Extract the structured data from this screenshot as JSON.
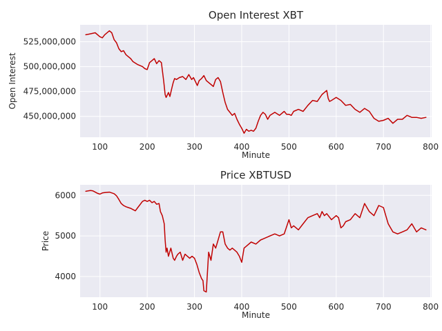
{
  "chart_data": [
    {
      "type": "line",
      "title": "Open Interest XBT",
      "xlabel": "Minute",
      "ylabel": "Open Interest",
      "xlim": [
        58,
        802
      ],
      "ylim": [
        429000000,
        542000000
      ],
      "xticks": [
        100,
        200,
        300,
        400,
        500,
        600,
        700,
        800
      ],
      "yticks": [
        450000000,
        475000000,
        500000000,
        525000000
      ],
      "ytick_labels": [
        "450,000,000",
        "475,000,000",
        "500,000,000",
        "525,000,000"
      ],
      "grid": true,
      "color": "#c00000",
      "series": [
        {
          "x": [
            70,
            80,
            90,
            100,
            105,
            110,
            120,
            125,
            130,
            135,
            140,
            145,
            150,
            155,
            160,
            165,
            170,
            180,
            190,
            195,
            200,
            205,
            210,
            215,
            220,
            225,
            230,
            235,
            238,
            240,
            243,
            245,
            248,
            252,
            255,
            258,
            262,
            268,
            275,
            282,
            288,
            294,
            298,
            302,
            306,
            310,
            315,
            320,
            325,
            330,
            335,
            340,
            345,
            350,
            355,
            360,
            365,
            370,
            375,
            380,
            385,
            390,
            395,
            400,
            405,
            410,
            415,
            420,
            425,
            430,
            435,
            440,
            445,
            450,
            455,
            460,
            470,
            480,
            490,
            495,
            500,
            505,
            510,
            520,
            530,
            540,
            550,
            560,
            570,
            575,
            580,
            583,
            586,
            590,
            600,
            610,
            620,
            630,
            640,
            650,
            660,
            670,
            680,
            690,
            700,
            710,
            720,
            730,
            740,
            750,
            760,
            770,
            780,
            790
          ],
          "y": [
            532000000,
            533000000,
            534000000,
            530000000,
            529000000,
            532000000,
            536000000,
            534000000,
            527000000,
            524000000,
            518000000,
            515000000,
            516000000,
            512000000,
            510000000,
            508000000,
            505000000,
            502000000,
            500000000,
            498000000,
            497000000,
            504000000,
            506000000,
            508000000,
            503000000,
            506000000,
            504000000,
            485000000,
            472000000,
            469000000,
            472000000,
            474000000,
            470000000,
            478000000,
            484000000,
            488000000,
            487000000,
            489000000,
            490000000,
            487000000,
            492000000,
            487000000,
            489000000,
            485000000,
            481000000,
            486000000,
            488000000,
            491000000,
            486000000,
            484000000,
            482000000,
            480000000,
            487000000,
            489000000,
            485000000,
            474000000,
            464000000,
            457000000,
            454000000,
            451000000,
            453000000,
            447000000,
            442000000,
            438000000,
            433000000,
            437000000,
            435000000,
            436000000,
            435000000,
            438000000,
            445000000,
            451000000,
            454000000,
            452000000,
            447000000,
            451000000,
            454000000,
            451000000,
            455000000,
            452000000,
            452000000,
            451000000,
            455000000,
            457000000,
            455000000,
            461000000,
            466000000,
            465000000,
            472000000,
            474000000,
            476000000,
            468000000,
            465000000,
            466000000,
            469000000,
            466000000,
            461000000,
            462000000,
            457000000,
            454000000,
            458000000,
            455000000,
            448000000,
            445000000,
            446000000,
            448000000,
            443000000,
            447000000,
            447000000,
            451000000,
            449000000,
            449000000,
            448000000,
            449000000
          ]
        }
      ]
    },
    {
      "type": "line",
      "title": "Price XBTUSD",
      "xlabel": "Minute",
      "ylabel": "Price",
      "xlim": [
        58,
        802
      ],
      "ylim": [
        3490,
        6260
      ],
      "xticks": [
        100,
        200,
        300,
        400,
        500,
        600,
        700,
        800
      ],
      "yticks": [
        4000,
        5000,
        6000
      ],
      "ytick_labels": [
        "4000",
        "5000",
        "6000"
      ],
      "grid": true,
      "color": "#c00000",
      "series": [
        {
          "x": [
            70,
            80,
            85,
            90,
            95,
            100,
            105,
            110,
            120,
            130,
            135,
            140,
            145,
            150,
            155,
            160,
            165,
            170,
            175,
            180,
            190,
            195,
            200,
            205,
            210,
            215,
            220,
            225,
            228,
            232,
            236,
            238,
            240,
            242,
            245,
            250,
            255,
            258,
            262,
            265,
            270,
            275,
            280,
            285,
            290,
            295,
            300,
            305,
            310,
            315,
            318,
            320,
            325,
            330,
            335,
            340,
            345,
            350,
            355,
            360,
            365,
            370,
            375,
            380,
            385,
            390,
            395,
            400,
            405,
            410,
            420,
            430,
            440,
            450,
            460,
            470,
            480,
            490,
            500,
            505,
            510,
            520,
            530,
            540,
            550,
            560,
            565,
            570,
            575,
            580,
            590,
            600,
            605,
            610,
            615,
            620,
            630,
            640,
            650,
            660,
            670,
            680,
            690,
            700,
            705,
            710,
            720,
            730,
            740,
            750,
            760,
            770,
            780,
            790
          ],
          "y": [
            6100,
            6120,
            6110,
            6080,
            6050,
            6030,
            6060,
            6070,
            6080,
            6040,
            5990,
            5900,
            5800,
            5750,
            5720,
            5700,
            5680,
            5650,
            5620,
            5700,
            5850,
            5880,
            5850,
            5880,
            5820,
            5850,
            5780,
            5800,
            5600,
            5500,
            5300,
            4900,
            4600,
            4700,
            4500,
            4700,
            4450,
            4400,
            4500,
            4550,
            4600,
            4400,
            4550,
            4500,
            4450,
            4500,
            4450,
            4300,
            4100,
            3950,
            3900,
            3650,
            3620,
            4600,
            4400,
            4800,
            4700,
            4900,
            5100,
            5100,
            4800,
            4700,
            4650,
            4700,
            4650,
            4600,
            4500,
            4350,
            4700,
            4750,
            4850,
            4800,
            4900,
            4950,
            5000,
            5050,
            5000,
            5050,
            5400,
            5200,
            5250,
            5150,
            5300,
            5450,
            5500,
            5550,
            5450,
            5600,
            5500,
            5550,
            5400,
            5500,
            5450,
            5200,
            5250,
            5350,
            5400,
            5550,
            5450,
            5800,
            5600,
            5500,
            5750,
            5700,
            5500,
            5300,
            5100,
            5050,
            5100,
            5150,
            5300,
            5100,
            5200,
            5150
          ]
        }
      ]
    }
  ]
}
